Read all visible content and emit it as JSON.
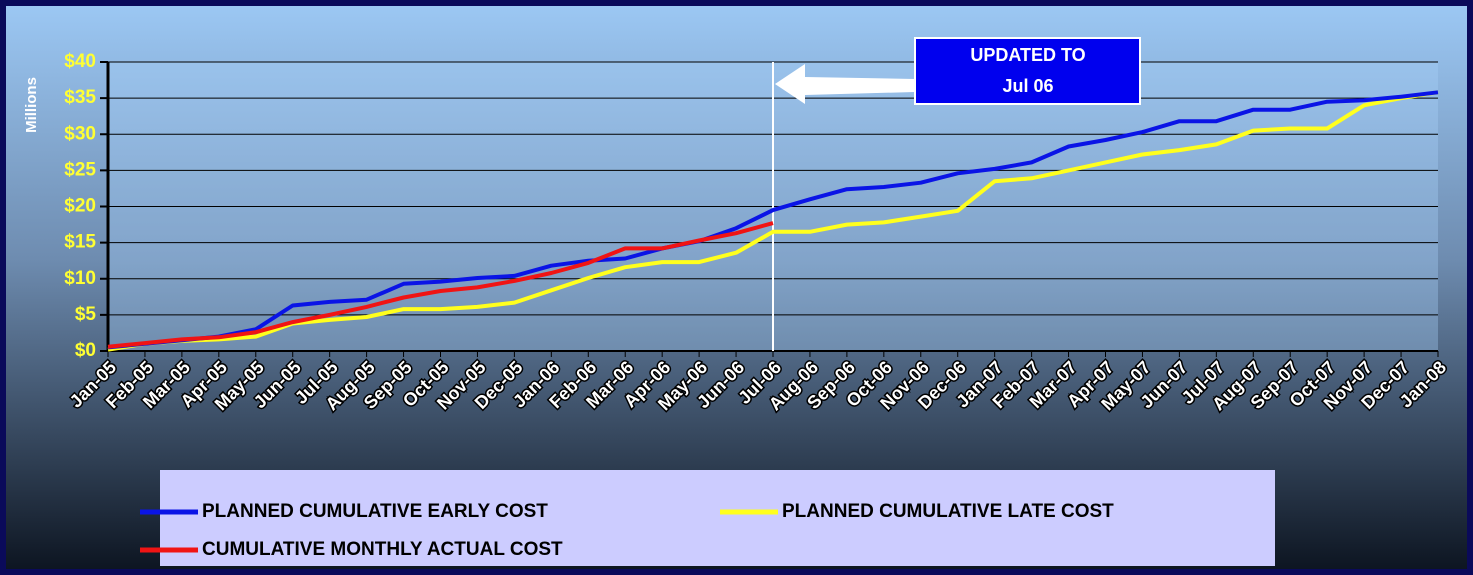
{
  "chart_data": {
    "type": "line",
    "y_axis_label": "Millions",
    "annotation": [
      "UPDATED TO",
      "Jul 06"
    ],
    "update_line": "Jul-06",
    "categories": [
      "Jan-05",
      "Feb-05",
      "Mar-05",
      "Apr-05",
      "May-05",
      "Jun-05",
      "Jul-05",
      "Aug-05",
      "Sep-05",
      "Oct-05",
      "Nov-05",
      "Dec-05",
      "Jan-06",
      "Feb-06",
      "Mar-06",
      "Apr-06",
      "May-06",
      "Jun-06",
      "Jul-06",
      "Aug-06",
      "Sep-06",
      "Oct-06",
      "Nov-06",
      "Dec-06",
      "Jan-07",
      "Feb-07",
      "Mar-07",
      "Apr-07",
      "May-07",
      "Jun-07",
      "Jul-07",
      "Aug-07",
      "Sep-07",
      "Oct-07",
      "Nov-07",
      "Dec-07",
      "Jan-08"
    ],
    "series": [
      {
        "name": "PLANNED CUMULATIVE EARLY COST",
        "color": "#0a14e6",
        "values": [
          0.5,
          1.0,
          1.5,
          2.0,
          3.0,
          6.3,
          6.8,
          7.1,
          9.3,
          9.6,
          10.1,
          10.4,
          11.8,
          12.5,
          12.8,
          14.2,
          15.2,
          17.0,
          19.5,
          21.0,
          22.4,
          22.7,
          23.3,
          24.6,
          25.2,
          26.1,
          28.3,
          29.2,
          30.3,
          31.8,
          31.8,
          33.4,
          33.4,
          34.5,
          34.7,
          35.2,
          35.8
        ]
      },
      {
        "name": "PLANNED CUMULATIVE LATE COST",
        "color": "#ffff1e",
        "values": [
          0.2,
          1.0,
          1.4,
          1.6,
          2.0,
          3.8,
          4.3,
          4.7,
          5.8,
          5.8,
          6.1,
          6.7,
          8.4,
          10.1,
          11.6,
          12.3,
          12.3,
          13.6,
          16.5,
          16.5,
          17.5,
          17.8,
          18.6,
          19.4,
          23.5,
          23.9,
          25.0,
          26.1,
          27.2,
          27.8,
          28.6,
          30.5,
          30.8,
          30.8,
          34.0,
          35.0,
          35.8
        ]
      },
      {
        "name": "CUMULATIVE MONTHLY ACTUAL COST",
        "color": "#f01414",
        "values": [
          0.6,
          1.1,
          1.6,
          1.9,
          2.6,
          4.0,
          5.0,
          6.1,
          7.4,
          8.3,
          8.8,
          9.7,
          10.8,
          12.2,
          14.2,
          14.2,
          15.3,
          16.3,
          17.7,
          null,
          null,
          null,
          null,
          null,
          null,
          null,
          null,
          null,
          null,
          null,
          null,
          null,
          null,
          null,
          null,
          null,
          null
        ]
      }
    ],
    "ylim": [
      0,
      40
    ],
    "yticks": [
      {
        "value": 0,
        "label": "$0"
      },
      {
        "value": 5,
        "label": "$5"
      },
      {
        "value": 10,
        "label": "$10"
      },
      {
        "value": 15,
        "label": "$15"
      },
      {
        "value": 20,
        "label": "$20"
      },
      {
        "value": 25,
        "label": "$25"
      },
      {
        "value": 30,
        "label": "$30"
      },
      {
        "value": 35,
        "label": "$35"
      },
      {
        "value": 40,
        "label": "$40"
      }
    ],
    "grid": true
  }
}
